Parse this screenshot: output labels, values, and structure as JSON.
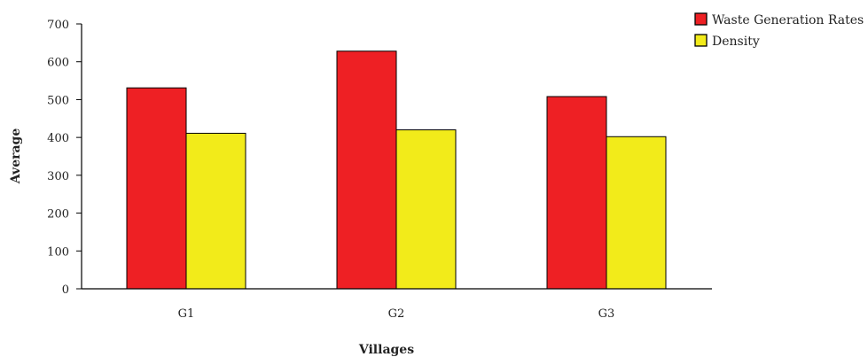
{
  "chart_data": {
    "type": "bar",
    "title": "",
    "xlabel": "Villages",
    "ylabel": "Average",
    "categories": [
      "G1",
      "G2",
      "G3"
    ],
    "series": [
      {
        "name": "Waste Generation Rates",
        "color": "#ee2024",
        "values": [
          531,
          628,
          508
        ]
      },
      {
        "name": "Density",
        "color": "#f2eb1a",
        "values": [
          411,
          420,
          402
        ]
      }
    ],
    "ylim": [
      0,
      700
    ],
    "yticks": [
      0,
      100,
      200,
      300,
      400,
      500,
      600,
      700
    ],
    "grid": false,
    "legend_position": "top-right"
  }
}
